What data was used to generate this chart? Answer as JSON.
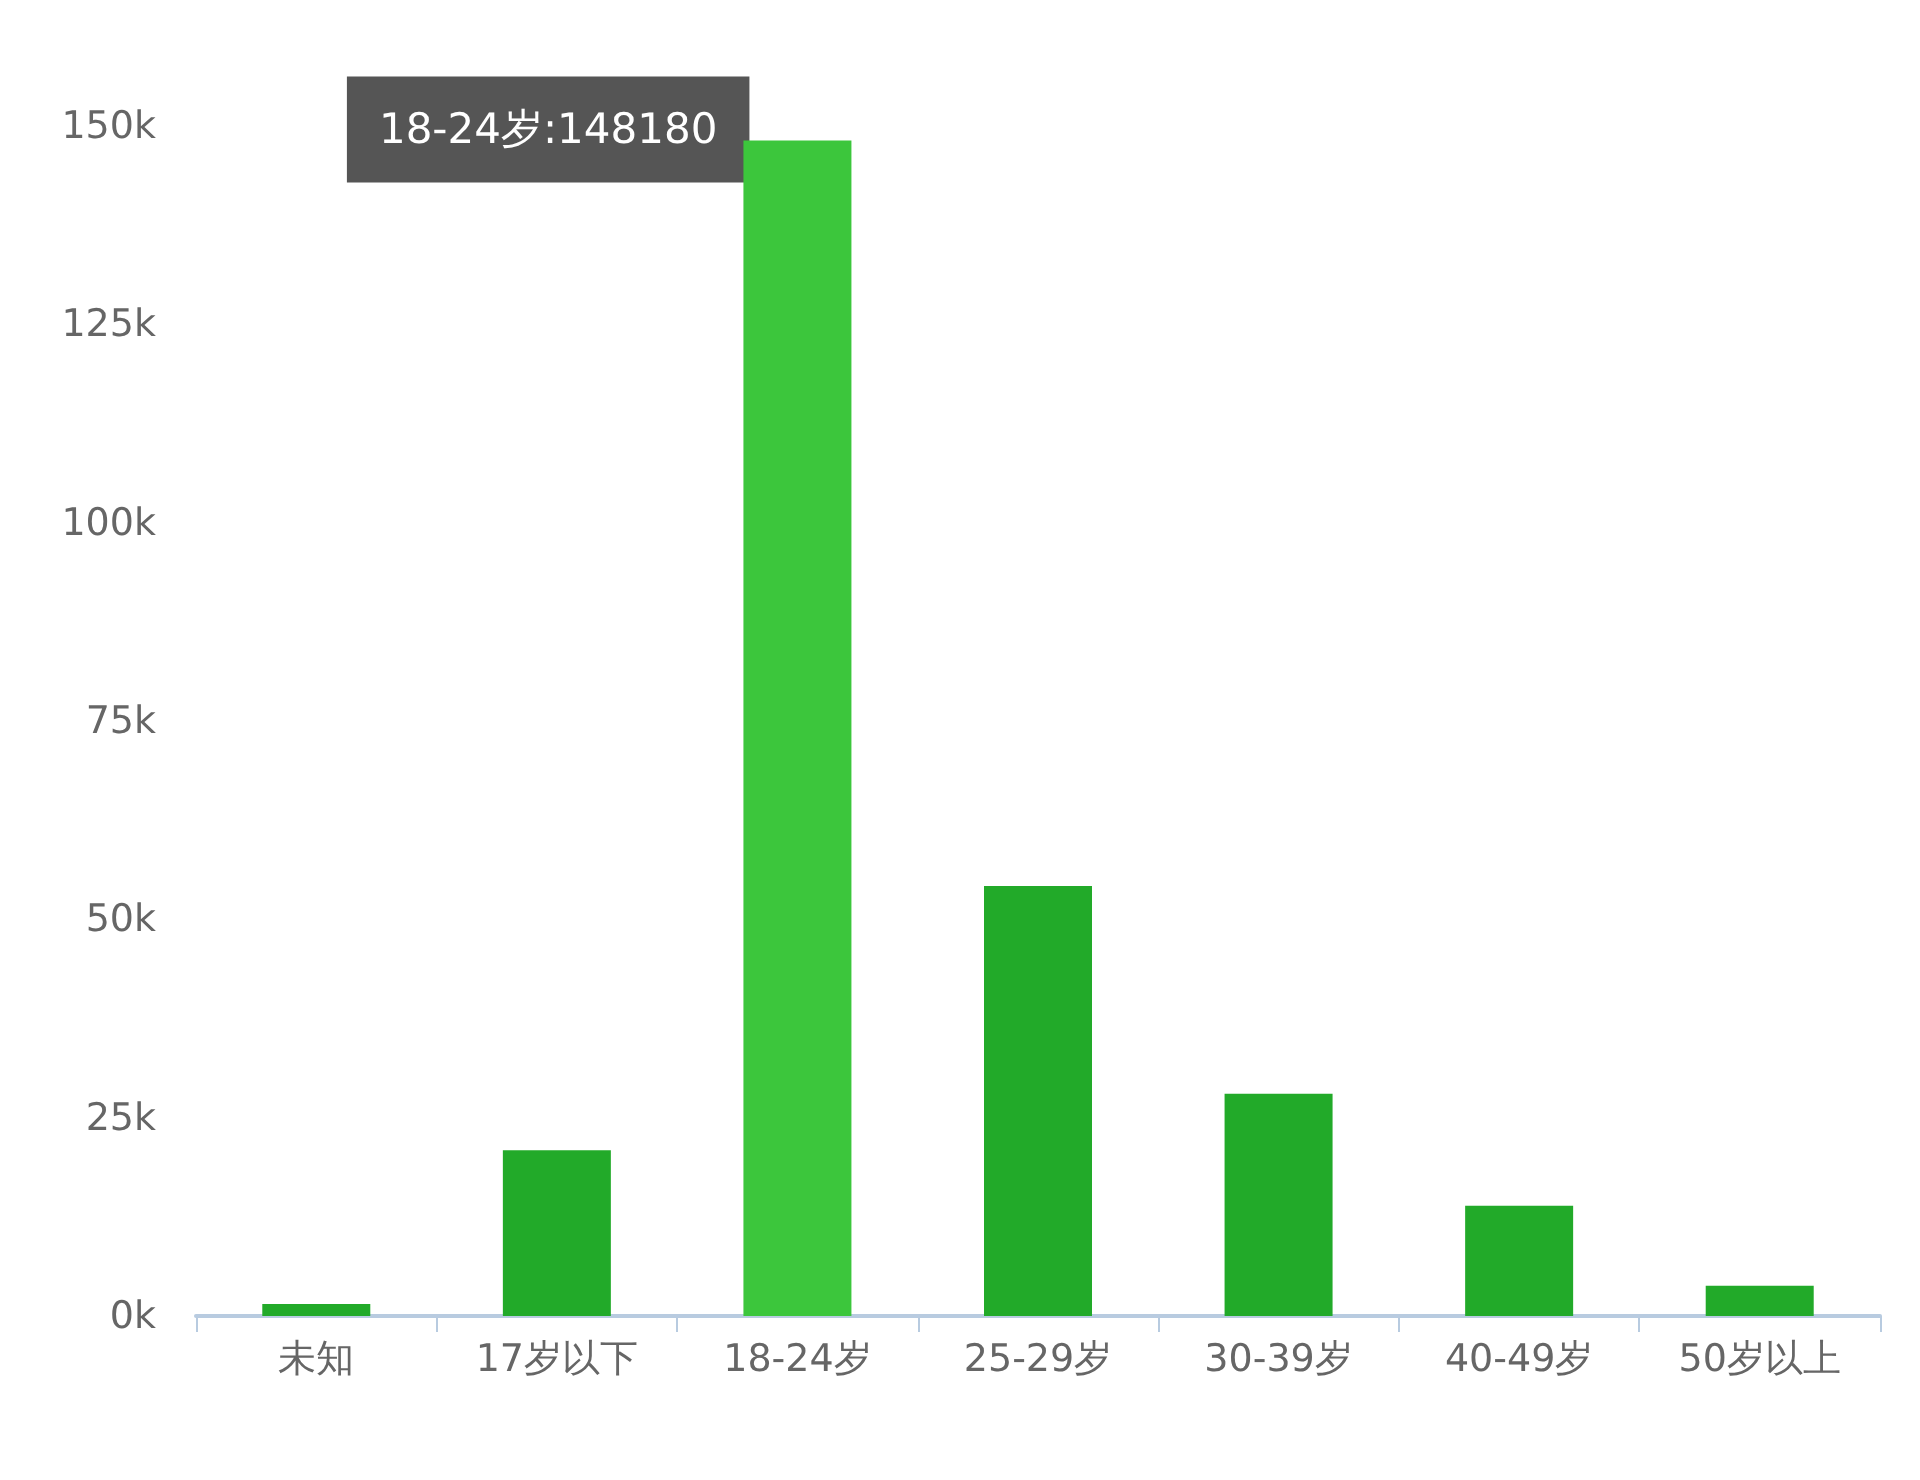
{
  "chart_data": {
    "type": "bar",
    "categories": [
      "未知",
      "17岁以下",
      "18-24岁",
      "25-29岁",
      "30-39岁",
      "40-49岁",
      "50岁以上"
    ],
    "values": [
      1500,
      20900,
      148180,
      54200,
      28000,
      13900,
      3800
    ],
    "colors": [
      "#22aa29",
      "#22aa29",
      "#3cc63c",
      "#22aa29",
      "#22aa29",
      "#22aa29",
      "#22aa29"
    ],
    "ylim": [
      0,
      150000
    ],
    "yticks": [
      {
        "value": 0,
        "label": "0k"
      },
      {
        "value": 25000,
        "label": "25k"
      },
      {
        "value": 50000,
        "label": "50k"
      },
      {
        "value": 75000,
        "label": "75k"
      },
      {
        "value": 100000,
        "label": "100k"
      },
      {
        "value": 125000,
        "label": "125k"
      },
      {
        "value": 150000,
        "label": "150k"
      }
    ],
    "grid": false,
    "annotations": [
      {
        "text": "18-24岁:148180",
        "x": "18-24岁",
        "y": 148180
      }
    ]
  }
}
